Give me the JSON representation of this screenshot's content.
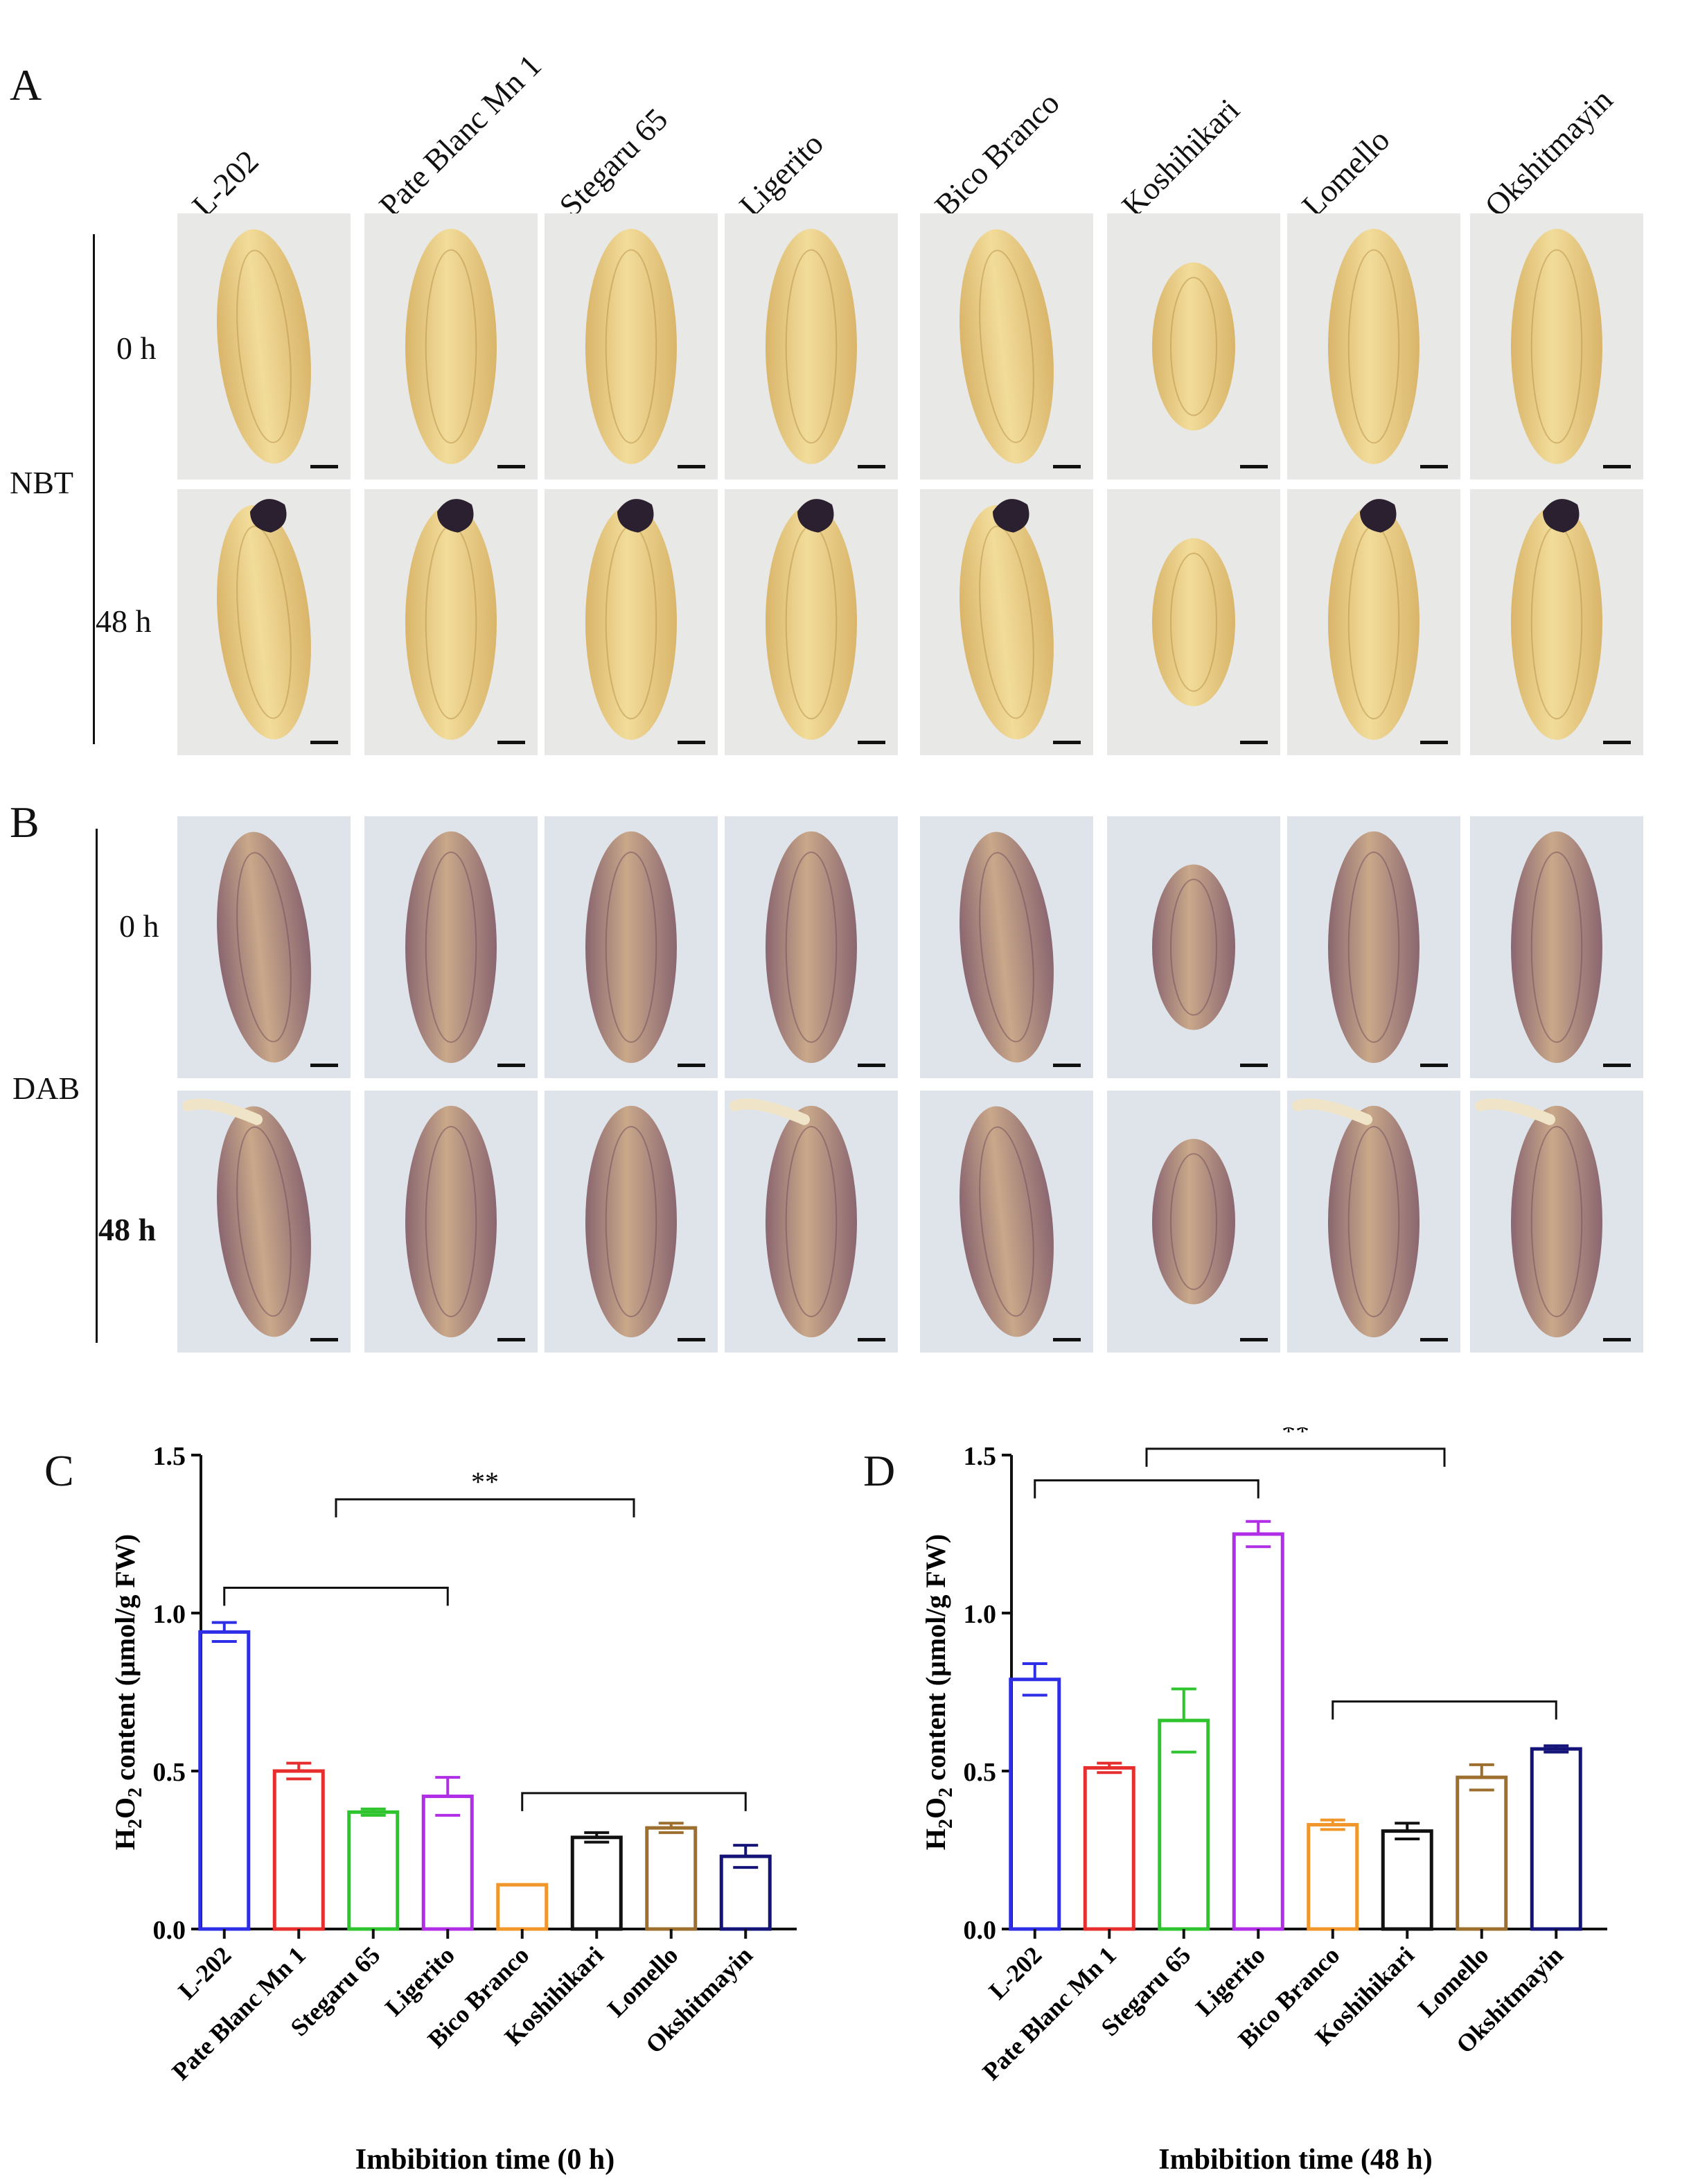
{
  "panel_letters": {
    "a": "A",
    "b": "B",
    "c": "C",
    "d": "D"
  },
  "varieties": [
    "L-202",
    "Pate Blanc Mn 1",
    "Stegaru 65",
    "Ligerito",
    "Bico Branco",
    "Koshihikari",
    "Lomello",
    "Okshitmayin"
  ],
  "panel_a": {
    "stain": "NBT",
    "rows": [
      "0 h",
      "48 h"
    ]
  },
  "panel_b": {
    "stain": "DAB",
    "rows": [
      "0 h",
      "48 h"
    ]
  },
  "significance": "**",
  "chart_data": [
    {
      "type": "bar",
      "panel": "C",
      "categories": [
        "L-202",
        "Pate Blanc Mn 1",
        "Stegaru 65",
        "Ligerito",
        "Bico Branco",
        "Koshihikari",
        "Lomello",
        "Okshitmayin"
      ],
      "values": [
        0.94,
        0.5,
        0.37,
        0.42,
        0.14,
        0.29,
        0.32,
        0.23
      ],
      "errors": [
        0.03,
        0.025,
        0.01,
        0.06,
        0.0,
        0.015,
        0.015,
        0.035
      ],
      "colors": [
        "#2e2ee6",
        "#e62e2e",
        "#2ec42e",
        "#b02ee6",
        "#f0962a",
        "#111111",
        "#9c6f2e",
        "#141478"
      ],
      "xlabel": "Imbibition time (0 h)",
      "ylabel_parts": [
        "H",
        "2",
        "O",
        "2",
        " content (μmol/g FW)"
      ],
      "ylim": [
        0,
        1.5
      ],
      "yticks": [
        "0.0",
        "0.5",
        "1.0",
        "1.5"
      ],
      "brackets": [
        {
          "from": 0,
          "to": 3,
          "top": 1.08
        },
        {
          "from": 4,
          "to": 7,
          "top": 0.43
        },
        {
          "from": 1.5,
          "to": 5.5,
          "top": 1.36,
          "label": "**"
        }
      ]
    },
    {
      "type": "bar",
      "panel": "D",
      "categories": [
        "L-202",
        "Pate Blanc Mn 1",
        "Stegaru 65",
        "Ligerito",
        "Bico Branco",
        "Koshihikari",
        "Lomello",
        "Okshitmayin"
      ],
      "values": [
        0.79,
        0.51,
        0.66,
        1.25,
        0.33,
        0.31,
        0.48,
        0.57
      ],
      "errors": [
        0.05,
        0.015,
        0.1,
        0.04,
        0.015,
        0.025,
        0.04,
        0.01
      ],
      "colors": [
        "#2e2ee6",
        "#e62e2e",
        "#2ec42e",
        "#b02ee6",
        "#f0962a",
        "#111111",
        "#9c6f2e",
        "#141478"
      ],
      "xlabel": "Imbibition time (48 h)",
      "ylabel_parts": [
        "H",
        "2",
        "O",
        "2",
        " content (μmol/g FW)"
      ],
      "ylim": [
        0,
        1.5
      ],
      "yticks": [
        "0.0",
        "0.5",
        "1.0",
        "1.5"
      ],
      "brackets": [
        {
          "from": 0,
          "to": 3,
          "top": 1.42
        },
        {
          "from": 4,
          "to": 7,
          "top": 0.72
        },
        {
          "from": 1.5,
          "to": 5.5,
          "top": 1.52,
          "label": "**"
        }
      ]
    }
  ]
}
